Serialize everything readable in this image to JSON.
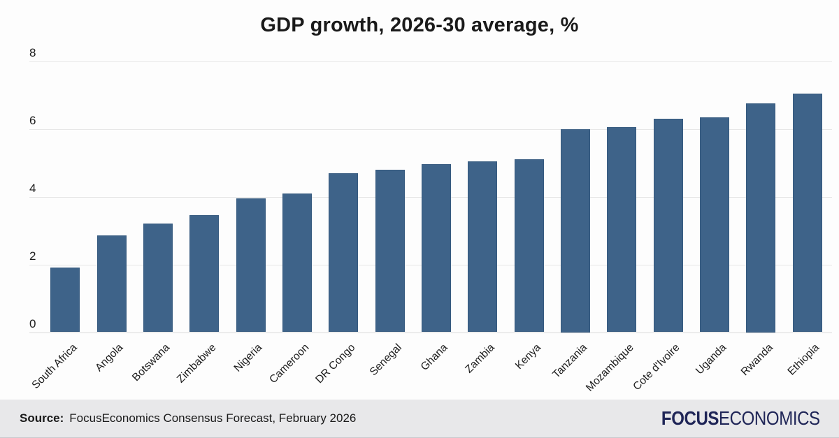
{
  "chart_data": {
    "type": "bar",
    "title": "GDP growth, 2026-30 average, %",
    "categories": [
      "South Africa",
      "Angola",
      "Botswana",
      "Zimbabwe",
      "Nigeria",
      "Cameroon",
      "DR Congo",
      "Senegal",
      "Ghana",
      "Zambia",
      "Kenya",
      "Tanzania",
      "Mozambique",
      "Cote d'Ivoire",
      "Uganda",
      "Rwanda",
      "Ethiopia"
    ],
    "values": [
      1.9,
      2.85,
      3.2,
      3.45,
      3.95,
      4.1,
      4.7,
      4.8,
      4.95,
      5.05,
      5.1,
      6.0,
      6.05,
      6.3,
      6.35,
      6.75,
      7.05
    ],
    "xlabel": "",
    "ylabel": "",
    "ylim": [
      0,
      8
    ],
    "yticks": [
      0,
      2,
      4,
      6,
      8
    ],
    "grid": "horizontal",
    "legend": "none",
    "bar_color": "#3e6389",
    "gridline_color": "#e6e6e6",
    "axis_line_color": "#d9d9d9",
    "text_color": "#1c1c1c"
  },
  "footer": {
    "source_label": "Source:",
    "source_text": "FocusEconomics Consensus Forecast, February 2026",
    "logo_bold": "FOCUS",
    "logo_light": "ECONOMICS",
    "background": "#e8e8ea",
    "logo_color": "#1f2557"
  }
}
